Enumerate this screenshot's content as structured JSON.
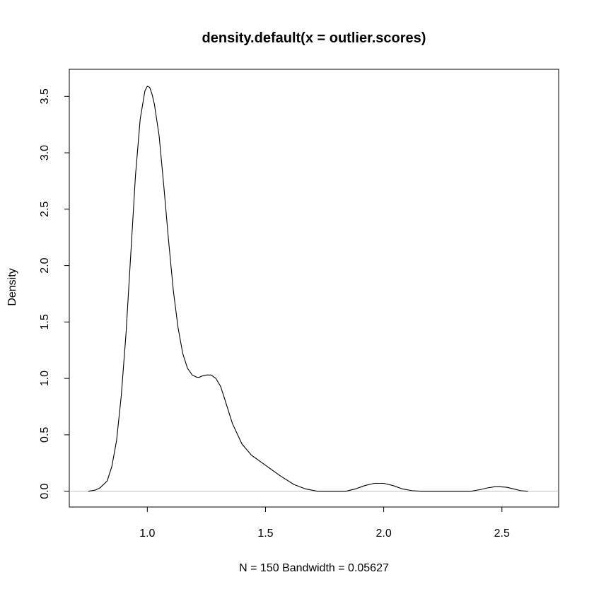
{
  "chart_data": {
    "type": "line",
    "title": "density.default(x = outlier.scores)",
    "xlabel": "N = 150    Bandwidth = 0.05627",
    "ylabel": "Density",
    "xlim": [
      0.67,
      2.74
    ],
    "ylim": [
      -0.14,
      3.74
    ],
    "x_ticks": [
      "1.0",
      "1.5",
      "2.0",
      "2.5"
    ],
    "x_tick_values": [
      1.0,
      1.5,
      2.0,
      2.5
    ],
    "y_ticks": [
      "0.0",
      "0.5",
      "1.0",
      "1.5",
      "2.0",
      "2.5",
      "3.0",
      "3.5"
    ],
    "y_tick_values": [
      0.0,
      0.5,
      1.0,
      1.5,
      2.0,
      2.5,
      3.0,
      3.5
    ],
    "baseline": 0,
    "baseline_color": "#bebebe",
    "line_color": "#000000",
    "grid": false,
    "series": [
      {
        "x": [
          0.75,
          0.78,
          0.8,
          0.83,
          0.85,
          0.87,
          0.89,
          0.91,
          0.93,
          0.95,
          0.97,
          0.99,
          1.0,
          1.01,
          1.02,
          1.03,
          1.05,
          1.07,
          1.09,
          1.11,
          1.13,
          1.15,
          1.17,
          1.19,
          1.21,
          1.22,
          1.23,
          1.25,
          1.27,
          1.29,
          1.31,
          1.33,
          1.36,
          1.4,
          1.44,
          1.5,
          1.56,
          1.62,
          1.67,
          1.72,
          1.8,
          1.84,
          1.88,
          1.92,
          1.96,
          2.0,
          2.04,
          2.08,
          2.12,
          2.16,
          2.2,
          2.37,
          2.41,
          2.44,
          2.47,
          2.49,
          2.52,
          2.55,
          2.58,
          2.61
        ],
        "y": [
          0.0,
          0.01,
          0.03,
          0.09,
          0.22,
          0.45,
          0.85,
          1.4,
          2.1,
          2.8,
          3.3,
          3.55,
          3.59,
          3.58,
          3.52,
          3.43,
          3.15,
          2.7,
          2.22,
          1.78,
          1.45,
          1.22,
          1.09,
          1.03,
          1.01,
          1.01,
          1.02,
          1.03,
          1.03,
          1.0,
          0.93,
          0.8,
          0.6,
          0.42,
          0.32,
          0.23,
          0.14,
          0.06,
          0.02,
          0.0,
          0.0,
          0.0,
          0.02,
          0.05,
          0.07,
          0.07,
          0.05,
          0.02,
          0.005,
          0.0,
          0.0,
          0.0,
          0.015,
          0.03,
          0.04,
          0.04,
          0.035,
          0.02,
          0.005,
          0.0
        ]
      }
    ]
  }
}
